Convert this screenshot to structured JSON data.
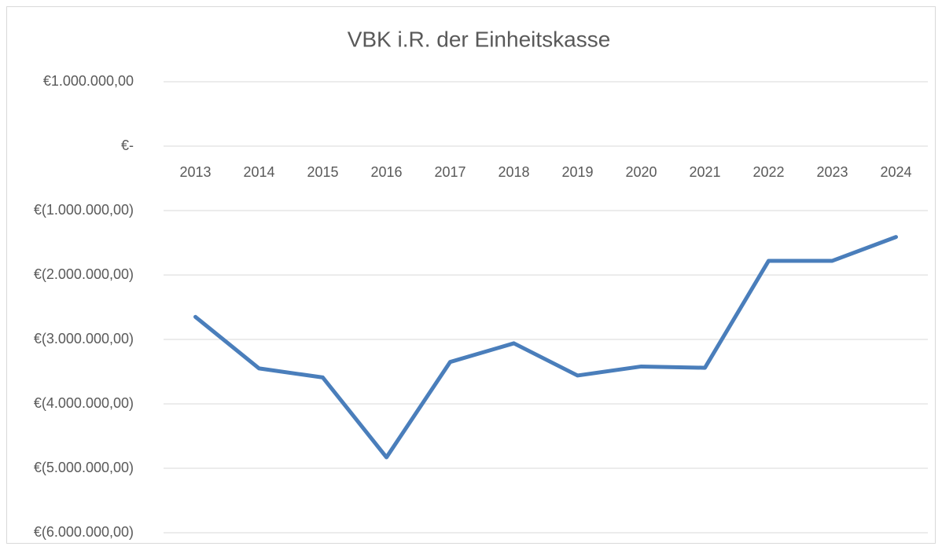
{
  "chart_data": {
    "type": "line",
    "title": "VBK i.R. der Einheitskasse",
    "categories": [
      "2013",
      "2014",
      "2015",
      "2016",
      "2017",
      "2018",
      "2019",
      "2020",
      "2021",
      "2022",
      "2023",
      "2024"
    ],
    "series": [
      {
        "name": "VBK",
        "color": "#4a7ebb",
        "values": [
          -2650000,
          -3450000,
          -3590000,
          -4830000,
          -3350000,
          -3060000,
          -3560000,
          -3420000,
          -3440000,
          -1780000,
          -1780000,
          -1410000
        ]
      }
    ],
    "ylim": [
      -6000000,
      1000000
    ],
    "yticks": [
      {
        "value": 1000000,
        "label": "€1.000.000,00"
      },
      {
        "value": 0,
        "label": "€-"
      },
      {
        "value": -1000000,
        "label": "€(1.000.000,00)"
      },
      {
        "value": -2000000,
        "label": "€(2.000.000,00)"
      },
      {
        "value": -3000000,
        "label": "€(3.000.000,00)"
      },
      {
        "value": -4000000,
        "label": "€(4.000.000,00)"
      },
      {
        "value": -5000000,
        "label": "€(5.000.000,00)"
      },
      {
        "value": -6000000,
        "label": "€(6.000.000,00)"
      }
    ],
    "grid": true
  }
}
